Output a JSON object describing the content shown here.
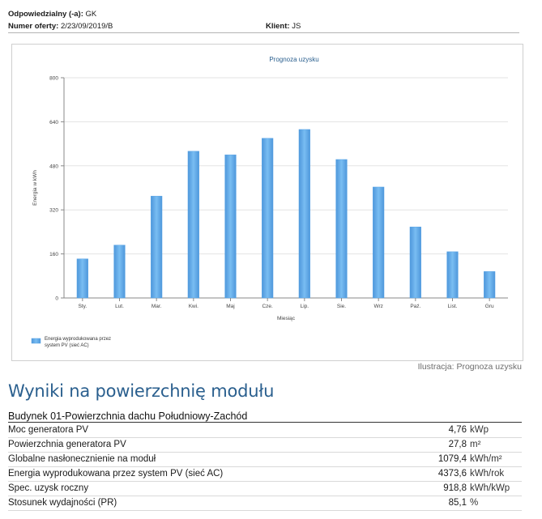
{
  "header": {
    "responsible_label": "Odpowiedzialny (-a):",
    "responsible_value": "GK",
    "offer_label": "Numer oferty:",
    "offer_value": "2/23/09/2019/B",
    "client_label": "Klient:",
    "client_value": "JS"
  },
  "chart_data": {
    "type": "bar",
    "title": "Prognoza uzysku",
    "xlabel": "Miesiąc",
    "ylabel": "Energia w kWh",
    "ylim": [
      0,
      800
    ],
    "yticks": [
      0,
      160,
      320,
      480,
      640,
      800
    ],
    "categories": [
      "Sty.",
      "Lut.",
      "Mar.",
      "Kwi.",
      "Maj",
      "Cze.",
      "Lip.",
      "Sie.",
      "Wrz",
      "Paź.",
      "List.",
      "Gru"
    ],
    "series": [
      {
        "name": "Energia wyprodukowana przez system PV (sieć AC)",
        "values": [
          142,
          192,
          370,
          533,
          520,
          580,
          612,
          503,
          403,
          258,
          168,
          96
        ]
      }
    ],
    "grid": true,
    "legend": "bottom-left",
    "bar_color": "#5aa5e6"
  },
  "caption": "Ilustracja: Prognoza uzysku",
  "section_title": "Wyniki na powierzchnię modułu",
  "building_title": "Budynek 01-Powierzchnia dachu Południowy-Zachód",
  "results": [
    {
      "label": "Moc generatora PV",
      "value": "4,76",
      "unit": "kWp"
    },
    {
      "label": "Powierzchnia generatora PV",
      "value": "27,8",
      "unit": "m²"
    },
    {
      "label": "Globalne nasłonecznienie na moduł",
      "value": "1079,4",
      "unit": "kWh/m²"
    },
    {
      "label": "Energia wyprodukowana przez system PV (sieć AC)",
      "value": "4373,6",
      "unit": "kWh/rok"
    },
    {
      "label": "Spec. uzysk roczny",
      "value": "918,8",
      "unit": "kWh/kWp"
    },
    {
      "label": "Stosunek wydajności (PR)",
      "value": "85,1",
      "unit": "%"
    }
  ]
}
